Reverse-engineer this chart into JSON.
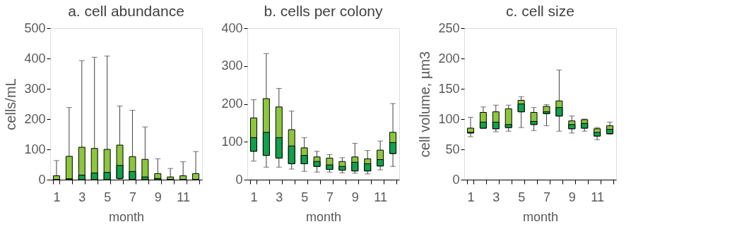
{
  "chart_data": [
    {
      "type": "box",
      "title": "a. cell abundance",
      "xlabel": "month",
      "ylabel": "cells/mL",
      "categories": [
        "1",
        null,
        "3",
        null,
        "5",
        null,
        "7",
        null,
        "9",
        null,
        "11",
        null
      ],
      "ylim": [
        0,
        500
      ],
      "yticks": [
        0,
        100,
        200,
        300,
        400,
        500
      ],
      "grid": false,
      "series": [
        {
          "color": "#8cc63f",
          "boxes": [
            {
              "low": 0,
              "q1": 0,
              "median": 0,
              "q3": 13,
              "high": 63
            },
            {
              "low": 0,
              "q1": 0,
              "median": 3,
              "q3": 77,
              "high": 238
            },
            {
              "low": 0,
              "q1": 0,
              "median": 15,
              "q3": 107,
              "high": 393
            },
            {
              "low": 0,
              "q1": 0,
              "median": 22,
              "q3": 103,
              "high": 404
            },
            {
              "low": 0,
              "q1": 0,
              "median": 24,
              "q3": 100,
              "high": 408
            },
            {
              "low": 0,
              "q1": 4,
              "median": 47,
              "q3": 114,
              "high": 243
            },
            {
              "low": 0,
              "q1": 1,
              "median": 27,
              "q3": 76,
              "high": 229
            },
            {
              "low": 0,
              "q1": 0,
              "median": 9,
              "q3": 67,
              "high": 174
            },
            {
              "low": 0,
              "q1": 0,
              "median": 4,
              "q3": 20,
              "high": 69
            },
            {
              "low": 0,
              "q1": 0,
              "median": 0,
              "q3": 9,
              "high": 37
            },
            {
              "low": 0,
              "q1": 0,
              "median": 0,
              "q3": 13,
              "high": 59
            },
            {
              "low": 0,
              "q1": 0,
              "median": 0,
              "q3": 20,
              "high": 93
            }
          ]
        }
      ]
    },
    {
      "type": "box",
      "title": "b. cells per colony",
      "xlabel": "month",
      "categories": [
        "1",
        null,
        "3",
        null,
        "5",
        null,
        "7",
        null,
        "9",
        null,
        "11",
        null
      ],
      "ylim": [
        0,
        400
      ],
      "yticks": [
        0,
        100,
        200,
        300,
        400
      ],
      "grid": false,
      "series": [
        {
          "color": "#8cc63f",
          "boxes": [
            {
              "low": 49,
              "q1": 75,
              "median": 111,
              "q3": 163,
              "high": 211
            },
            {
              "low": 33,
              "q1": 64,
              "median": 125,
              "q3": 214,
              "high": 333
            },
            {
              "low": 33,
              "q1": 57,
              "median": 111,
              "q3": 192,
              "high": 241
            },
            {
              "low": 28,
              "q1": 42,
              "median": 89,
              "q3": 132,
              "high": 181
            },
            {
              "low": 22,
              "q1": 42,
              "median": 64,
              "q3": 84,
              "high": 111
            },
            {
              "low": 20,
              "q1": 35,
              "median": 48,
              "q3": 60,
              "high": 75
            },
            {
              "low": 20,
              "q1": 27,
              "median": 39,
              "q3": 57,
              "high": 66
            },
            {
              "low": 18,
              "q1": 25,
              "median": 35,
              "q3": 48,
              "high": 58
            },
            {
              "low": 17,
              "q1": 23,
              "median": 46,
              "q3": 60,
              "high": 96
            },
            {
              "low": 15,
              "q1": 23,
              "median": 42,
              "q3": 55,
              "high": 77
            },
            {
              "low": 26,
              "q1": 36,
              "median": 53,
              "q3": 78,
              "high": 102
            },
            {
              "low": 35,
              "q1": 69,
              "median": 98,
              "q3": 125,
              "high": 201
            }
          ]
        }
      ]
    },
    {
      "type": "box",
      "title": "c. cell size",
      "xlabel": "month",
      "ylabel": "cell volume, µm3",
      "categories": [
        "1",
        null,
        "3",
        null,
        "5",
        null,
        "7",
        null,
        "9",
        null,
        "11",
        null
      ],
      "ylim": [
        0,
        250
      ],
      "yticks": [
        0,
        50,
        100,
        150,
        200,
        250
      ],
      "grid": false,
      "series": [
        {
          "color": "#8cc63f",
          "boxes": [
            {
              "low": 71,
              "q1": 77,
              "median": 78,
              "q3": 85,
              "high": 103
            },
            {
              "low": 85,
              "q1": 85,
              "median": 95,
              "q3": 111,
              "high": 120
            },
            {
              "low": 79,
              "q1": 84,
              "median": 95,
              "q3": 112,
              "high": 123
            },
            {
              "low": 80,
              "q1": 86,
              "median": 91,
              "q3": 117,
              "high": 123
            },
            {
              "low": 86,
              "q1": 112,
              "median": 125,
              "q3": 131,
              "high": 137
            },
            {
              "low": 81,
              "q1": 91,
              "median": 96,
              "q3": 111,
              "high": 119
            },
            {
              "low": 89,
              "q1": 109,
              "median": 112,
              "q3": 121,
              "high": 124
            },
            {
              "low": 80,
              "q1": 105,
              "median": 119,
              "q3": 130,
              "high": 181
            },
            {
              "low": 77,
              "q1": 84,
              "median": 91,
              "q3": 97,
              "high": 105
            },
            {
              "low": 80,
              "q1": 85,
              "median": 93,
              "q3": 99,
              "high": 100
            },
            {
              "low": 66,
              "q1": 72,
              "median": 78,
              "q3": 84,
              "high": 86
            },
            {
              "low": 75,
              "q1": 76,
              "median": 83,
              "q3": 89,
              "high": 95
            }
          ]
        }
      ]
    }
  ]
}
